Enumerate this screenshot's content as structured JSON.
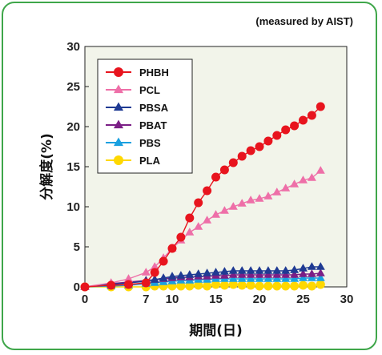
{
  "chart_data": {
    "type": "line",
    "note": "(measured by AIST)",
    "xlabel": "期間(日)",
    "ylabel": "分解度(%)",
    "xlim": [
      0,
      30
    ],
    "ylim": [
      0,
      30
    ],
    "xticks": [
      0,
      7,
      10,
      15,
      20,
      25,
      30
    ],
    "yticks": [
      0,
      5,
      10,
      15,
      20,
      25,
      30
    ],
    "grid": false,
    "legend_position": "top-left",
    "plot_background": "#f2f4ea",
    "series": [
      {
        "name": "PHBH",
        "color": "#e8141e",
        "marker": "circle",
        "x": [
          0,
          3,
          5,
          7,
          8,
          9,
          10,
          11,
          12,
          13,
          14,
          15,
          16,
          17,
          18,
          19,
          20,
          21,
          22,
          23,
          24,
          25,
          26,
          27
        ],
        "y": [
          0,
          0.2,
          0.3,
          0.5,
          1.8,
          3.2,
          4.8,
          6.2,
          8.6,
          10.5,
          12,
          13.7,
          14.6,
          15.5,
          16.3,
          17,
          17.5,
          18.2,
          18.9,
          19.6,
          20.1,
          20.8,
          21.4,
          22.5
        ]
      },
      {
        "name": "PCL",
        "color": "#ee6fa8",
        "marker": "triangle",
        "x": [
          0,
          3,
          5,
          7,
          8,
          9,
          10,
          11,
          12,
          13,
          14,
          15,
          16,
          17,
          18,
          19,
          20,
          21,
          22,
          23,
          24,
          25,
          26,
          27
        ],
        "y": [
          0,
          0.5,
          1,
          1.8,
          2.5,
          3.6,
          4.8,
          5.8,
          6.8,
          7.5,
          8.3,
          9,
          9.5,
          10,
          10.4,
          10.8,
          11,
          11.3,
          11.8,
          12.3,
          12.8,
          13.3,
          13.6,
          14.5
        ]
      },
      {
        "name": "PBSA",
        "color": "#1f3a93",
        "marker": "triangle",
        "x": [
          0,
          3,
          5,
          7,
          8,
          9,
          10,
          11,
          12,
          13,
          14,
          15,
          16,
          17,
          18,
          19,
          20,
          21,
          22,
          23,
          24,
          25,
          26,
          27
        ],
        "y": [
          0,
          0.3,
          0.5,
          0.7,
          0.9,
          1.1,
          1.3,
          1.4,
          1.5,
          1.6,
          1.7,
          1.8,
          1.9,
          2,
          2,
          2,
          2,
          2,
          2,
          2,
          2.1,
          2.3,
          2.5,
          2.5
        ]
      },
      {
        "name": "PBAT",
        "color": "#7b1f86",
        "marker": "triangle",
        "x": [
          0,
          3,
          5,
          7,
          8,
          9,
          10,
          11,
          12,
          13,
          14,
          15,
          16,
          17,
          18,
          19,
          20,
          21,
          22,
          23,
          24,
          25,
          26,
          27
        ],
        "y": [
          0,
          0.4,
          0.6,
          0.8,
          0.9,
          1,
          1.1,
          1.2,
          1.2,
          1.3,
          1.3,
          1.4,
          1.4,
          1.5,
          1.5,
          1.5,
          1.5,
          1.5,
          1.5,
          1.5,
          1.5,
          1.6,
          1.6,
          1.7
        ]
      },
      {
        "name": "PBS",
        "color": "#1aa0e0",
        "marker": "triangle",
        "x": [
          0,
          3,
          5,
          7,
          8,
          9,
          10,
          11,
          12,
          13,
          14,
          15,
          16,
          17,
          18,
          19,
          20,
          21,
          22,
          23,
          24,
          25,
          26,
          27
        ],
        "y": [
          0,
          0.1,
          0.2,
          0.4,
          0.5,
          0.6,
          0.7,
          0.8,
          0.8,
          0.9,
          0.9,
          1,
          1,
          1,
          1,
          1,
          1,
          1,
          1,
          1,
          1,
          1.1,
          1.1,
          1.1
        ]
      },
      {
        "name": "PLA",
        "color": "#ffd800",
        "marker": "circle",
        "x": [
          0,
          3,
          5,
          7,
          8,
          9,
          10,
          11,
          12,
          13,
          14,
          15,
          16,
          17,
          18,
          19,
          20,
          21,
          22,
          23,
          24,
          25,
          26,
          27
        ],
        "y": [
          0,
          0,
          0,
          0,
          0.1,
          0.1,
          0.1,
          0.1,
          0.1,
          0.2,
          0.1,
          0.3,
          0.2,
          0.3,
          0.2,
          0.2,
          0.1,
          0.1,
          0.1,
          0.1,
          0.1,
          0.2,
          0.1,
          0.3
        ]
      }
    ]
  }
}
